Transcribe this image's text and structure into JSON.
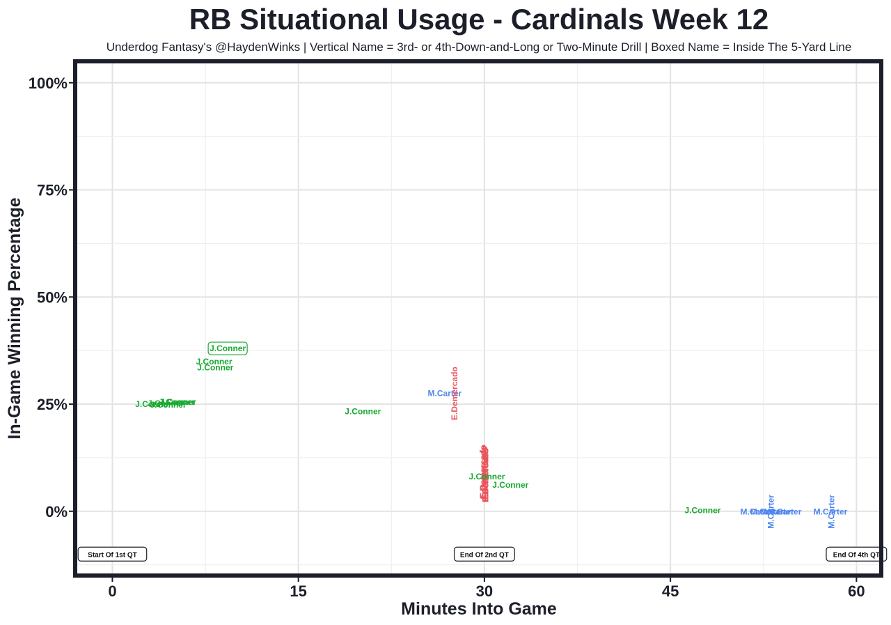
{
  "chart_data": {
    "type": "scatter",
    "title": "RB Situational Usage - Cardinals Week 12",
    "subtitle": "Underdog Fantasy's @HaydenWinks | Vertical Name = 3rd- or 4th-Down-and-Long or Two-Minute Drill | Boxed Name = Inside The 5-Yard Line",
    "xlabel": "Minutes Into Game",
    "ylabel": "In-Game Winning Percentage",
    "xlim": [
      -3,
      62
    ],
    "ylim": [
      -15,
      105
    ],
    "x_ticks": [
      0,
      15,
      30,
      45,
      60
    ],
    "x_tick_labels": [
      "0",
      "15",
      "30",
      "45",
      "60"
    ],
    "y_ticks": [
      0,
      25,
      50,
      75,
      100
    ],
    "y_tick_labels": [
      "0%",
      "25%",
      "50%",
      "75%",
      "100%"
    ],
    "grid": true,
    "colors": {
      "J.Conner": "#17a831",
      "M.Carter": "#4f86f0",
      "E.Demercado": "#e8565c"
    },
    "points": [
      {
        "x": 3.3,
        "y": 25.0,
        "label": "J.Conner",
        "vertical": false,
        "boxed": false
      },
      {
        "x": 4.3,
        "y": 25.2,
        "label": "J.Conner",
        "vertical": false,
        "boxed": false
      },
      {
        "x": 4.5,
        "y": 24.8,
        "label": "J.Conner",
        "vertical": false,
        "boxed": false
      },
      {
        "x": 5.3,
        "y": 25.5,
        "label": "J.Conner",
        "vertical": false,
        "boxed": false
      },
      {
        "x": 5.2,
        "y": 25.5,
        "label": "J.Conner",
        "vertical": false,
        "boxed": false
      },
      {
        "x": 8.2,
        "y": 34.9,
        "label": "J.Conner",
        "vertical": false,
        "boxed": false
      },
      {
        "x": 8.3,
        "y": 33.5,
        "label": "J.Conner",
        "vertical": false,
        "boxed": false
      },
      {
        "x": 9.3,
        "y": 38.0,
        "label": "J.Conner",
        "vertical": false,
        "boxed": true
      },
      {
        "x": 20.2,
        "y": 23.3,
        "label": "J.Conner",
        "vertical": false,
        "boxed": false
      },
      {
        "x": 26.8,
        "y": 27.5,
        "label": "M.Carter",
        "vertical": false,
        "boxed": false
      },
      {
        "x": 27.6,
        "y": 27.5,
        "label": "E.Demercado",
        "vertical": true,
        "boxed": false
      },
      {
        "x": 29.9,
        "y": 9.3,
        "label": "E.Demercado",
        "vertical": true,
        "boxed": false
      },
      {
        "x": 29.9,
        "y": 9.1,
        "label": "E.Demercado",
        "vertical": true,
        "boxed": false
      },
      {
        "x": 30.0,
        "y": 9.0,
        "label": "E.Demercado",
        "vertical": true,
        "boxed": false
      },
      {
        "x": 30.1,
        "y": 8.6,
        "label": "E.Demercado",
        "vertical": true,
        "boxed": false
      },
      {
        "x": 30.1,
        "y": 8.3,
        "label": "E.Demercado",
        "vertical": true,
        "boxed": false
      },
      {
        "x": 30.2,
        "y": 8.1,
        "label": "J.Conner",
        "vertical": false,
        "boxed": false
      },
      {
        "x": 32.1,
        "y": 6.1,
        "label": "J.Conner",
        "vertical": false,
        "boxed": false
      },
      {
        "x": 47.6,
        "y": 0.2,
        "label": "J.Conner",
        "vertical": false,
        "boxed": false
      },
      {
        "x": 52.0,
        "y": -0.1,
        "label": "M.Carter",
        "vertical": false,
        "boxed": false
      },
      {
        "x": 52.8,
        "y": -0.1,
        "label": "M.Carter",
        "vertical": false,
        "boxed": false
      },
      {
        "x": 53.1,
        "y": -0.1,
        "label": "M.Carter",
        "vertical": true,
        "boxed": false
      },
      {
        "x": 53.6,
        "y": -0.1,
        "label": "M.Carter",
        "vertical": false,
        "boxed": false
      },
      {
        "x": 54.2,
        "y": -0.1,
        "label": "M.Carter",
        "vertical": false,
        "boxed": false
      },
      {
        "x": 57.9,
        "y": -0.1,
        "label": "M.Carter",
        "vertical": false,
        "boxed": false
      },
      {
        "x": 58.0,
        "y": -0.1,
        "label": "M.Carter",
        "vertical": true,
        "boxed": false
      }
    ],
    "quarter_markers": [
      {
        "x": 0,
        "y": -10,
        "label": "Start Of 1st QT"
      },
      {
        "x": 30,
        "y": -10,
        "label": "End Of 2nd QT"
      },
      {
        "x": 60,
        "y": -10,
        "label": "End Of 4th QT"
      }
    ]
  }
}
